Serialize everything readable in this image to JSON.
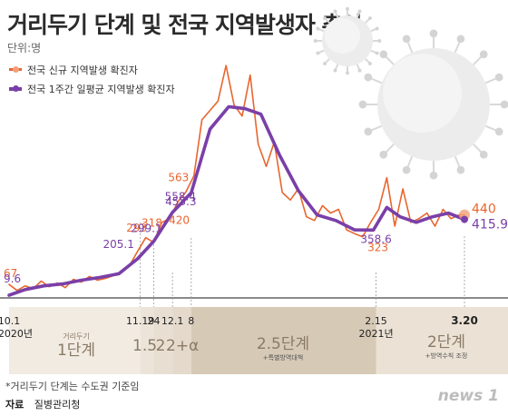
{
  "title": "거리두기 단계 및 전국 지역발생자 추이",
  "unit": "단위:명",
  "legend": {
    "daily": "전국 신규 지역발생 확진자",
    "weekly": "전국 1주간 일평균 지역발생 확진자"
  },
  "colors": {
    "daily": "#e8662f",
    "weekly": "#7a3fa8",
    "band_dark": "#d6c9b5",
    "band_light": "#f1ebe2"
  },
  "icons": [
    "virus-icon-large",
    "virus-icon-small"
  ],
  "chart_data": {
    "type": "line",
    "x_start": "2020-10-01",
    "x_end": "2021-03-20",
    "ylim": [
      0,
      1300
    ],
    "x_ticks": [
      "10.1",
      "11.19",
      "24",
      "12.1",
      "8",
      "2.15",
      "3.20"
    ],
    "year_labels": [
      "2020년",
      "2021년"
    ],
    "series": [
      {
        "name": "전국 신규 지역발생 확진자",
        "x": [
          "2020-10-01",
          "2020-10-04",
          "2020-10-07",
          "2020-10-10",
          "2020-10-13",
          "2020-10-16",
          "2020-10-19",
          "2020-10-22",
          "2020-10-25",
          "2020-10-28",
          "2020-10-31",
          "2020-11-03",
          "2020-11-06",
          "2020-11-09",
          "2020-11-12",
          "2020-11-15",
          "2020-11-18",
          "2020-11-21",
          "2020-11-24",
          "2020-11-27",
          "2020-11-30",
          "2020-12-03",
          "2020-12-06",
          "2020-12-09",
          "2020-12-12",
          "2020-12-15",
          "2020-12-18",
          "2020-12-21",
          "2020-12-24",
          "2020-12-27",
          "2020-12-30",
          "2021-01-02",
          "2021-01-05",
          "2021-01-08",
          "2021-01-11",
          "2021-01-14",
          "2021-01-17",
          "2021-01-20",
          "2021-01-23",
          "2021-01-26",
          "2021-01-29",
          "2021-02-01",
          "2021-02-04",
          "2021-02-07",
          "2021-02-10",
          "2021-02-13",
          "2021-02-16",
          "2021-02-19",
          "2021-02-22",
          "2021-02-25",
          "2021-02-28",
          "2021-03-03",
          "2021-03-06",
          "2021-03-09",
          "2021-03-12",
          "2021-03-15",
          "2021-03-18",
          "2021-03-20"
        ],
        "values": [
          67,
          35,
          60,
          45,
          85,
          55,
          75,
          50,
          95,
          80,
          110,
          90,
          100,
          115,
          130,
          170,
          245,
          318,
          293,
          400,
          420,
          510,
          563,
          650,
          950,
          1000,
          1050,
          1241,
          1030,
          970,
          1190,
          820,
          700,
          830,
          560,
          520,
          580,
          430,
          410,
          490,
          450,
          470,
          360,
          340,
          323,
          400,
          470,
          640,
          380,
          580,
          400,
          420,
          450,
          380,
          470,
          420,
          440,
          440
        ]
      },
      {
        "name": "전국 1주간 일평균 지역발생 확진자",
        "x": [
          "2020-10-01",
          "2020-10-07",
          "2020-10-14",
          "2020-10-21",
          "2020-10-28",
          "2020-11-04",
          "2020-11-11",
          "2020-11-18",
          "2020-11-24",
          "2020-12-01",
          "2020-12-08",
          "2020-12-15",
          "2020-12-22",
          "2020-12-28",
          "2021-01-03",
          "2021-01-10",
          "2021-01-17",
          "2021-01-24",
          "2021-01-31",
          "2021-02-07",
          "2021-02-14",
          "2021-02-19",
          "2021-02-24",
          "2021-03-02",
          "2021-03-08",
          "2021-03-14",
          "2021-03-20"
        ],
        "values": [
          9.6,
          40,
          60,
          70,
          90,
          105,
          125,
          205.1,
          299.1,
          453.3,
          558.4,
          900,
          1020,
          1010,
          980,
          760,
          570,
          440,
          410,
          360,
          358.6,
          480,
          430,
          400,
          430,
          450,
          415.9
        ]
      }
    ],
    "annotations": [
      {
        "text": "67",
        "date": "2020-10-01",
        "value": 67,
        "series": "daily"
      },
      {
        "text": "9.6",
        "date": "2020-10-01",
        "value": 9.6,
        "series": "weekly"
      },
      {
        "text": "293",
        "date": "2020-11-19",
        "value": 293,
        "series": "daily"
      },
      {
        "text": "205.1",
        "date": "2020-11-19",
        "value": 205.1,
        "series": "weekly"
      },
      {
        "text": "318",
        "date": "2020-11-24",
        "value": 318,
        "series": "daily"
      },
      {
        "text": "299.1",
        "date": "2020-11-24",
        "value": 299.1,
        "series": "weekly"
      },
      {
        "text": "453.3",
        "date": "2020-12-01",
        "value": 453.3,
        "series": "weekly"
      },
      {
        "text": "420",
        "date": "2020-12-01",
        "value": 420,
        "series": "daily"
      },
      {
        "text": "563",
        "date": "2020-12-08",
        "value": 563,
        "series": "daily"
      },
      {
        "text": "558.4",
        "date": "2020-12-08",
        "value": 558.4,
        "series": "weekly"
      },
      {
        "text": "358.6",
        "date": "2021-02-15",
        "value": 358.6,
        "series": "weekly"
      },
      {
        "text": "323",
        "date": "2021-02-15",
        "value": 323,
        "series": "daily"
      },
      {
        "text": "440",
        "date": "2021-03-20",
        "value": 440,
        "series": "daily"
      },
      {
        "text": "415.9",
        "date": "2021-03-20",
        "value": 415.9,
        "series": "weekly"
      }
    ]
  },
  "phases": [
    {
      "small": "거리두기",
      "big": "1단계",
      "note": "",
      "shade": "light"
    },
    {
      "small": "",
      "big": "1.5",
      "note": "",
      "shade": "light"
    },
    {
      "small": "",
      "big": "2",
      "note": "",
      "shade": "light"
    },
    {
      "small": "",
      "big": "2+α",
      "note": "",
      "shade": "light"
    },
    {
      "small": "",
      "big": "2.5단계",
      "note": "+특별방역대책",
      "shade": "dark"
    },
    {
      "small": "",
      "big": "2단계",
      "note": "+방역수칙 조정",
      "shade": "light"
    }
  ],
  "footnote": "*거리두기 단계는 수도권 기준임",
  "source": {
    "label": "자료",
    "value": "질병관리청"
  },
  "logo": "news 1"
}
